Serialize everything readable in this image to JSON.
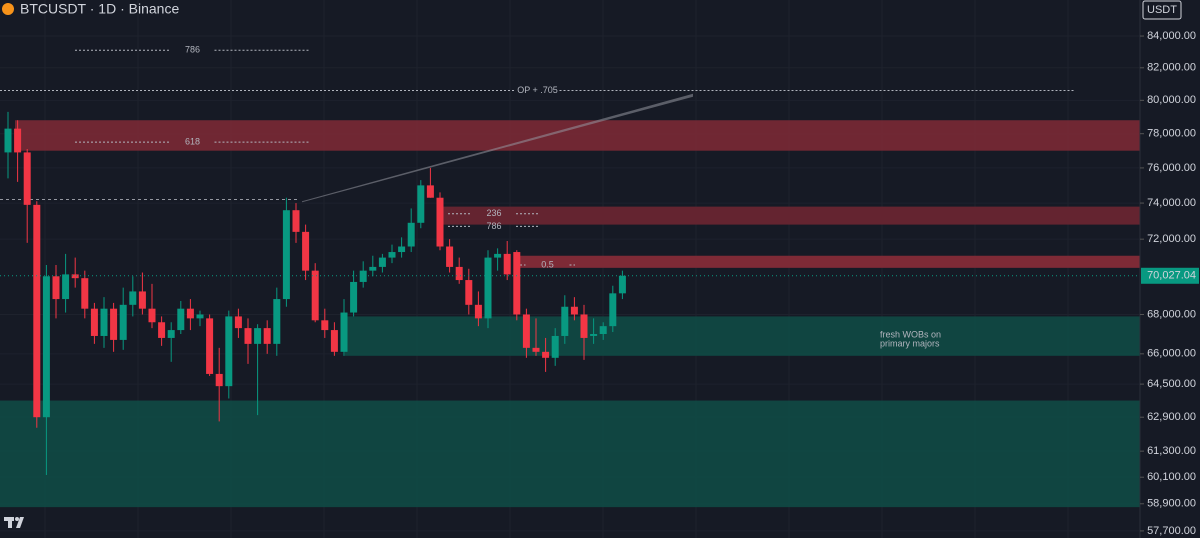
{
  "chart_data": {
    "type": "candlestick",
    "title": "BTCUSDT · 1D · Binance",
    "currency": "USDT",
    "log_scale": true,
    "grid": true,
    "up_color": "#089981",
    "down_color": "#f23645",
    "ylim": [
      57390,
      86330
    ],
    "yticks": [
      {
        "value": 84000,
        "label": "84,000.00"
      },
      {
        "value": 82000,
        "label": "82,000.00"
      },
      {
        "value": 80000,
        "label": "80,000.00"
      },
      {
        "value": 78000,
        "label": "78,000.00"
      },
      {
        "value": 76000,
        "label": "76,000.00"
      },
      {
        "value": 74000,
        "label": "74,000.00"
      },
      {
        "value": 72000,
        "label": "72,000.00"
      },
      {
        "value": 68000,
        "label": "68,000.00"
      },
      {
        "value": 66000,
        "label": "66,000.00"
      },
      {
        "value": 64500,
        "label": "64,500.00"
      },
      {
        "value": 62900,
        "label": "62,900.00"
      },
      {
        "value": 61300,
        "label": "61,300.00"
      },
      {
        "value": 60100,
        "label": "60,100.00"
      },
      {
        "value": 58900,
        "label": "58,900.00"
      },
      {
        "value": 57700,
        "label": "57,700.00"
      }
    ],
    "last_price": {
      "value": 70027.04,
      "label": "70,027.04"
    },
    "open": [
      76900,
      78300,
      76900,
      73900,
      62900,
      70000,
      68800,
      70100,
      69900,
      68300,
      66900,
      68300,
      66700,
      68500,
      69200,
      68300,
      67600,
      66800,
      67200,
      68300,
      67800,
      67800,
      65000,
      64400,
      67900,
      67300,
      66500,
      67300,
      66500,
      68800,
      73600,
      72400,
      70300,
      67700,
      67200,
      66100,
      68100,
      69700,
      70300,
      70500,
      71000,
      71300,
      71600,
      72900,
      75000,
      74300,
      71600,
      70500,
      69800,
      68500,
      67800,
      71000,
      71200,
      71300,
      68000,
      66300,
      66100,
      65800,
      66900,
      68400,
      68000,
      66900,
      67000,
      67400,
      69100
    ],
    "high": [
      79300,
      78800,
      77100,
      74100,
      70600,
      70600,
      71200,
      71000,
      70300,
      68600,
      68900,
      68600,
      69400,
      70000,
      70200,
      69600,
      67900,
      67600,
      68700,
      68800,
      68200,
      68000,
      66300,
      68200,
      68300,
      67800,
      67500,
      67700,
      69400,
      74300,
      74000,
      72800,
      70700,
      68300,
      67600,
      68800,
      70300,
      70800,
      71100,
      71200,
      71700,
      72100,
      73700,
      75300,
      76000,
      74600,
      72000,
      71000,
      70400,
      69200,
      71400,
      71500,
      71900,
      71400,
      68300,
      67800,
      66800,
      67300,
      69000,
      68900,
      68500,
      67800,
      67600,
      69500,
      70300
    ],
    "low": [
      75400,
      75200,
      71800,
      62400,
      60200,
      67800,
      68100,
      69400,
      67800,
      66500,
      66300,
      66100,
      66200,
      67900,
      68000,
      67300,
      66400,
      65600,
      67000,
      67200,
      67400,
      64900,
      62700,
      63800,
      66800,
      65500,
      63000,
      66000,
      65900,
      68400,
      71800,
      69800,
      67600,
      66800,
      65900,
      65900,
      67900,
      69400,
      70000,
      70200,
      70700,
      71000,
      71300,
      72600,
      74300,
      71400,
      70200,
      69600,
      68000,
      67400,
      67300,
      70300,
      69800,
      67700,
      65800,
      65900,
      65100,
      65400,
      66500,
      67700,
      65700,
      66500,
      66700,
      67100,
      68800
    ],
    "close": [
      78300,
      76900,
      73900,
      62900,
      70000,
      68800,
      70100,
      69900,
      68300,
      66900,
      68300,
      66700,
      68500,
      69200,
      68300,
      67600,
      66800,
      67200,
      68300,
      67800,
      68000,
      65000,
      64400,
      67900,
      67300,
      66500,
      67300,
      66500,
      68800,
      73600,
      72400,
      70300,
      67700,
      67200,
      66100,
      68100,
      69700,
      70300,
      70500,
      71000,
      71300,
      71600,
      72900,
      75000,
      74300,
      71600,
      70500,
      69800,
      68500,
      67800,
      71000,
      71200,
      70100,
      68000,
      66300,
      66100,
      65800,
      66900,
      68400,
      68000,
      66800,
      67000,
      67400,
      69100,
      70027.04
    ],
    "zones": [
      {
        "top": 78800,
        "bottom": 77000,
        "color": "#7a2935"
      },
      {
        "top": 73800,
        "bottom": 72800,
        "color": "#6d2632"
      },
      {
        "top": 71100,
        "bottom": 70450,
        "color": "#8a2c38"
      },
      {
        "top": 67900,
        "bottom": 65900,
        "color": "#0f4a45"
      },
      {
        "top": 63700,
        "bottom": 58750,
        "color": "#0f4a45"
      }
    ],
    "levels": [
      {
        "label": "786",
        "value": 83100
      },
      {
        "label": "OP + .705",
        "value": 80600
      },
      {
        "label": "618",
        "value": 77500
      },
      {
        "label": "236",
        "value": 73400
      },
      {
        "label": "786",
        "value": 72700
      },
      {
        "label": "0.5",
        "value": 70600
      }
    ],
    "swing_line": 74200,
    "trendline": [
      74100,
      80400
    ],
    "annotation": [
      "fresh WOBs on",
      "primary majors"
    ]
  }
}
